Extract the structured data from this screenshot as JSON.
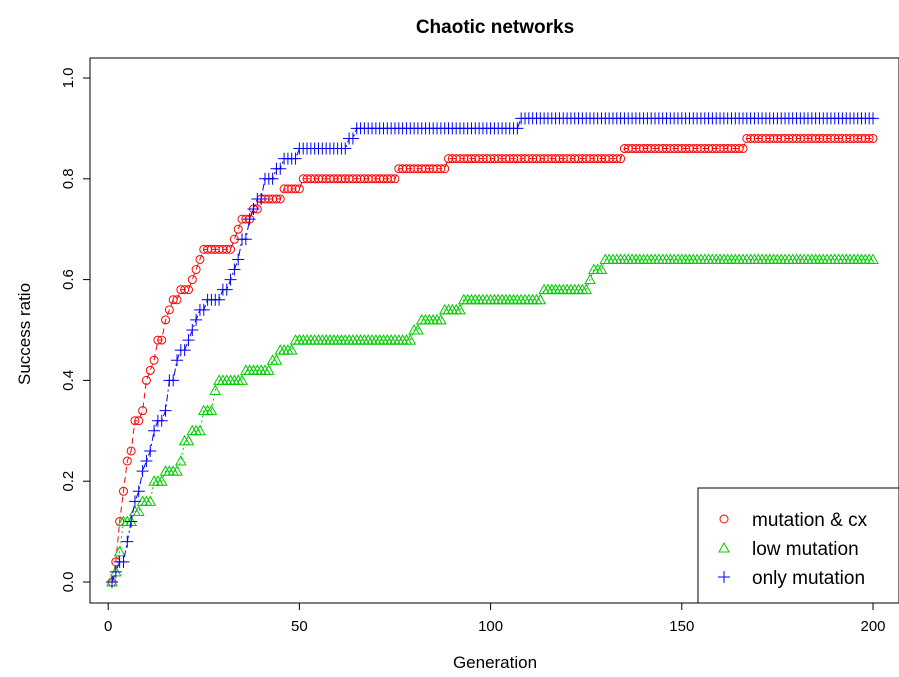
{
  "chart_data": {
    "type": "line",
    "title": "Chaotic networks",
    "xlabel": "Generation",
    "ylabel": "Success ratio",
    "xlim": [
      1,
      200
    ],
    "ylim": [
      0,
      1
    ],
    "xticks": [
      "0",
      "50",
      "100",
      "150",
      "200"
    ],
    "xtick_values": [
      0,
      50,
      100,
      150,
      200
    ],
    "yticks": [
      "0.0",
      "0.2",
      "0.4",
      "0.6",
      "0.8",
      "1.0"
    ],
    "ytick_values": [
      0,
      0.2,
      0.4,
      0.6,
      0.8,
      1.0
    ],
    "grid": false,
    "legend_position": "bottom-right",
    "series": [
      {
        "name": "mutation & cx",
        "color": "#ff0000",
        "marker": "circle",
        "line_style": "dashed",
        "steps": [
          [
            1,
            0
          ],
          [
            2,
            0.04
          ],
          [
            3,
            0.12
          ],
          [
            4,
            0.18
          ],
          [
            5,
            0.24
          ],
          [
            6,
            0.26
          ],
          [
            7,
            0.32
          ],
          [
            9,
            0.34
          ],
          [
            10,
            0.4
          ],
          [
            11,
            0.42
          ],
          [
            12,
            0.44
          ],
          [
            13,
            0.48
          ],
          [
            15,
            0.52
          ],
          [
            16,
            0.54
          ],
          [
            17,
            0.56
          ],
          [
            19,
            0.58
          ],
          [
            22,
            0.6
          ],
          [
            23,
            0.62
          ],
          [
            24,
            0.64
          ],
          [
            25,
            0.66
          ],
          [
            33,
            0.68
          ],
          [
            34,
            0.7
          ],
          [
            35,
            0.72
          ],
          [
            38,
            0.74
          ],
          [
            40,
            0.76
          ],
          [
            46,
            0.78
          ],
          [
            51,
            0.8
          ],
          [
            76,
            0.82
          ],
          [
            89,
            0.84
          ],
          [
            135,
            0.86
          ],
          [
            167,
            0.88
          ],
          [
            200,
            0.88
          ]
        ]
      },
      {
        "name": "low mutation",
        "color": "#00cc00",
        "marker": "triangle",
        "line_style": "dotted",
        "steps": [
          [
            1,
            0
          ],
          [
            2,
            0.02
          ],
          [
            3,
            0.06
          ],
          [
            4,
            0.12
          ],
          [
            7,
            0.14
          ],
          [
            9,
            0.16
          ],
          [
            12,
            0.2
          ],
          [
            15,
            0.22
          ],
          [
            19,
            0.24
          ],
          [
            20,
            0.28
          ],
          [
            22,
            0.3
          ],
          [
            25,
            0.34
          ],
          [
            28,
            0.38
          ],
          [
            29,
            0.4
          ],
          [
            36,
            0.42
          ],
          [
            43,
            0.44
          ],
          [
            45,
            0.46
          ],
          [
            49,
            0.48
          ],
          [
            80,
            0.5
          ],
          [
            82,
            0.52
          ],
          [
            88,
            0.54
          ],
          [
            93,
            0.56
          ],
          [
            114,
            0.58
          ],
          [
            126,
            0.6
          ],
          [
            127,
            0.62
          ],
          [
            130,
            0.64
          ],
          [
            200,
            0.64
          ]
        ]
      },
      {
        "name": "only mutation",
        "color": "#0000ff",
        "marker": "plus",
        "line_style": "dashdot",
        "steps": [
          [
            1,
            0
          ],
          [
            2,
            0.02
          ],
          [
            3,
            0.04
          ],
          [
            5,
            0.08
          ],
          [
            6,
            0.12
          ],
          [
            7,
            0.16
          ],
          [
            8,
            0.18
          ],
          [
            9,
            0.22
          ],
          [
            10,
            0.24
          ],
          [
            11,
            0.26
          ],
          [
            12,
            0.3
          ],
          [
            13,
            0.32
          ],
          [
            15,
            0.34
          ],
          [
            16,
            0.4
          ],
          [
            18,
            0.44
          ],
          [
            19,
            0.46
          ],
          [
            21,
            0.48
          ],
          [
            22,
            0.5
          ],
          [
            23,
            0.52
          ],
          [
            24,
            0.54
          ],
          [
            26,
            0.56
          ],
          [
            30,
            0.58
          ],
          [
            32,
            0.6
          ],
          [
            33,
            0.62
          ],
          [
            34,
            0.64
          ],
          [
            35,
            0.68
          ],
          [
            37,
            0.72
          ],
          [
            38,
            0.74
          ],
          [
            39,
            0.76
          ],
          [
            41,
            0.8
          ],
          [
            44,
            0.82
          ],
          [
            46,
            0.84
          ],
          [
            50,
            0.86
          ],
          [
            63,
            0.88
          ],
          [
            65,
            0.9
          ],
          [
            108,
            0.92
          ],
          [
            200,
            0.92
          ]
        ]
      }
    ]
  }
}
